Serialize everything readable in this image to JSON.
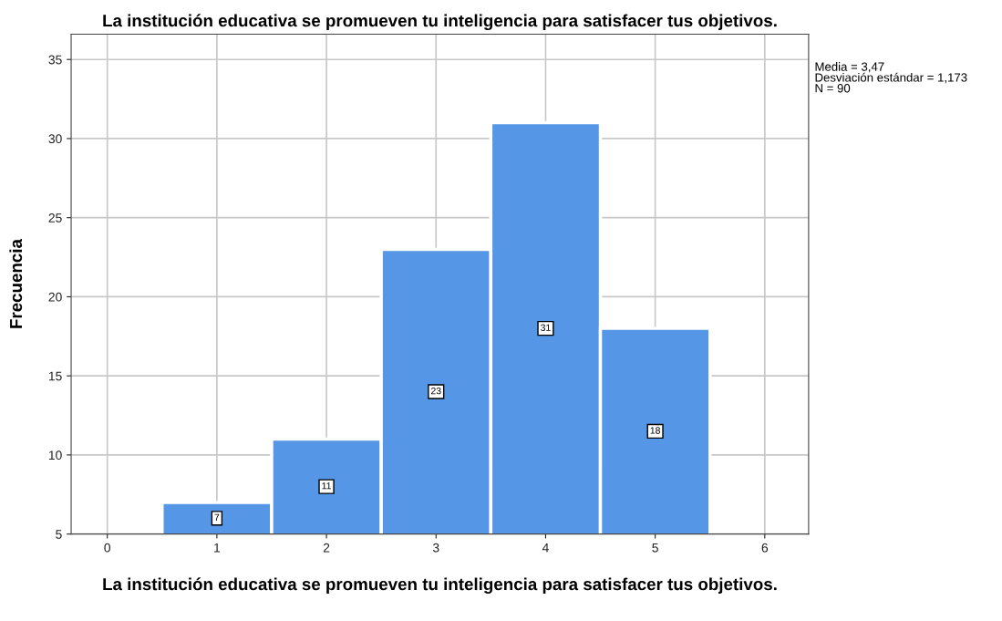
{
  "chart_data": {
    "type": "histogram",
    "title": "La institución educativa se promueven tu inteligencia para satisfacer tus objetivos.",
    "xlabel": "La institución educativa se promueven tu inteligencia para satisfacer tus objetivos.",
    "ylabel": "Frecuencia",
    "bins": [
      0.5,
      1.5,
      2.5,
      3.5,
      4.5,
      5.5
    ],
    "values": [
      7,
      11,
      23,
      31,
      18
    ],
    "color": "#5596e6",
    "xlim": [
      -0.33,
      6.4
    ],
    "xticks": [
      0,
      1,
      2,
      3,
      4,
      5,
      6
    ],
    "ylim": [
      5,
      36.6
    ],
    "yticks": [
      5,
      10,
      15,
      20,
      25,
      30,
      35
    ],
    "grid": true,
    "data_labels": true,
    "annotations": [
      "Media = 3,47",
      "Desviación estándar = 1,173",
      "N = 90"
    ]
  }
}
